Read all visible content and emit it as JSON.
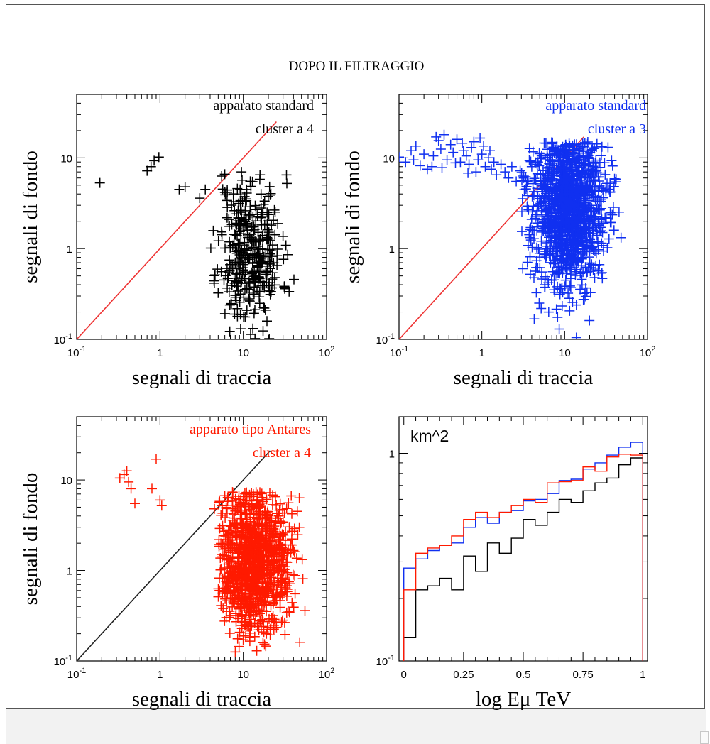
{
  "figure_title": "DOPO IL FILTRAGGIO",
  "colors": {
    "black": "#000000",
    "blue": "#1030f0",
    "red": "#ff1a00",
    "diag_red": "#ee3333",
    "diag_black": "#222222"
  },
  "chart_data": [
    {
      "type": "scatter",
      "panel": "top-left",
      "xlabel": "segnali di traccia",
      "ylabel": "segnali di fondo",
      "xscale": "log",
      "yscale": "log",
      "xlim": [
        0.1,
        100
      ],
      "ylim": [
        0.1,
        50
      ],
      "xticks": [
        {
          "v": 0.1,
          "b": "10",
          "e": "-1"
        },
        {
          "v": 1,
          "b": "1",
          "e": ""
        },
        {
          "v": 10,
          "b": "10",
          "e": ""
        },
        {
          "v": 100,
          "b": "10",
          "e": "2"
        }
      ],
      "yticks": [
        {
          "v": 0.1,
          "b": "10",
          "e": "-1"
        },
        {
          "v": 1,
          "b": "1",
          "e": ""
        },
        {
          "v": 10,
          "b": "10",
          "e": ""
        }
      ],
      "annotations": [
        "apparato standard",
        "cluster a 4"
      ],
      "annotation_color": "#000000",
      "marker_color": "#000000",
      "diagonal": {
        "x": [
          0.1,
          25
        ],
        "y": [
          0.1,
          25
        ],
        "color": "#ee3333"
      },
      "cloud": {
        "count": 360,
        "seed": 11,
        "x_center": 12,
        "x_spread": 0.19,
        "y_center": 0.95,
        "y_spread": 0.42,
        "x_min": 4,
        "x_max": 42,
        "y_min": 0.1,
        "y_max": 7
      },
      "outliers": [
        [
          0.19,
          5.3
        ],
        [
          0.7,
          7.2
        ],
        [
          0.78,
          8.0
        ],
        [
          0.85,
          9.3
        ],
        [
          0.97,
          10.2
        ],
        [
          1.7,
          4.5
        ],
        [
          2.0,
          4.8
        ],
        [
          3.0,
          3.6
        ],
        [
          3.5,
          4.5
        ],
        [
          5.5,
          6.3
        ],
        [
          6.0,
          6.6
        ],
        [
          9.5,
          7.0
        ]
      ]
    },
    {
      "type": "scatter",
      "panel": "top-right",
      "xlabel": "segnali di traccia",
      "ylabel": "segnali di fondo",
      "xscale": "log",
      "yscale": "log",
      "xlim": [
        0.1,
        100
      ],
      "ylim": [
        0.1,
        50
      ],
      "xticks": [
        {
          "v": 0.1,
          "b": "10",
          "e": "-1"
        },
        {
          "v": 1,
          "b": "1",
          "e": ""
        },
        {
          "v": 10,
          "b": "10",
          "e": ""
        },
        {
          "v": 100,
          "b": "10",
          "e": "2"
        }
      ],
      "yticks": [
        {
          "v": 0.1,
          "b": "10",
          "e": "-1"
        },
        {
          "v": 1,
          "b": "1",
          "e": ""
        },
        {
          "v": 10,
          "b": "10",
          "e": ""
        }
      ],
      "annotations": [
        "apparato standard",
        "cluster a 3"
      ],
      "annotation_color": "#1030f0",
      "marker_color": "#1030f0",
      "diagonal": {
        "x": [
          0.1,
          17
        ],
        "y": [
          0.1,
          17
        ],
        "color": "#ee3333"
      },
      "cloud": {
        "count": 1300,
        "seed": 23,
        "x_center": 11,
        "x_spread": 0.22,
        "y_center": 2.8,
        "y_spread": 0.45,
        "x_min": 3,
        "x_max": 50,
        "y_min": 0.1,
        "y_max": 15
      },
      "outliers": [
        [
          0.1,
          10.2
        ],
        [
          0.12,
          9.0
        ],
        [
          0.14,
          12.0
        ],
        [
          0.16,
          13.5
        ],
        [
          0.2,
          11.0
        ],
        [
          0.22,
          7.5
        ],
        [
          0.25,
          8.0
        ],
        [
          0.28,
          17.0
        ],
        [
          0.3,
          15.5
        ],
        [
          0.32,
          12.5
        ],
        [
          0.35,
          18.0
        ],
        [
          0.38,
          9.5
        ],
        [
          0.42,
          14.0
        ],
        [
          0.45,
          11.5
        ],
        [
          0.5,
          16.0
        ],
        [
          0.55,
          9.0
        ],
        [
          0.6,
          12.0
        ],
        [
          0.65,
          10.5
        ],
        [
          0.7,
          8.5
        ],
        [
          0.75,
          13.0
        ],
        [
          0.8,
          15.0
        ],
        [
          0.85,
          7.0
        ],
        [
          0.9,
          9.5
        ],
        [
          1.0,
          11.0
        ],
        [
          1.1,
          8.0
        ],
        [
          1.2,
          10.0
        ],
        [
          1.3,
          7.5
        ],
        [
          1.4,
          9.0
        ],
        [
          1.5,
          6.5
        ],
        [
          1.7,
          8.5
        ],
        [
          1.9,
          7.0
        ],
        [
          2.1,
          6.0
        ],
        [
          2.3,
          8.0
        ],
        [
          2.6,
          5.5
        ],
        [
          2.9,
          7.2
        ],
        [
          0.15,
          9.5
        ],
        [
          0.18,
          8.2
        ],
        [
          0.26,
          10.5
        ],
        [
          0.33,
          7.8
        ],
        [
          0.48,
          8.8
        ],
        [
          0.58,
          14.5
        ],
        [
          0.68,
          6.8
        ],
        [
          1.05,
          13.5
        ],
        [
          1.25,
          12.0
        ],
        [
          0.95,
          16.5
        ]
      ]
    },
    {
      "type": "scatter",
      "panel": "bottom-left",
      "xlabel": "segnali di traccia",
      "ylabel": "segnali di fondo",
      "xscale": "log",
      "yscale": "log",
      "xlim": [
        0.1,
        100
      ],
      "ylim": [
        0.1,
        50
      ],
      "xticks": [
        {
          "v": 0.1,
          "b": "10",
          "e": "-1"
        },
        {
          "v": 1,
          "b": "1",
          "e": ""
        },
        {
          "v": 10,
          "b": "10",
          "e": ""
        },
        {
          "v": 100,
          "b": "10",
          "e": "2"
        }
      ],
      "yticks": [
        {
          "v": 0.1,
          "b": "10",
          "e": "-1"
        },
        {
          "v": 1,
          "b": "1",
          "e": ""
        },
        {
          "v": 10,
          "b": "10",
          "e": ""
        }
      ],
      "annotations": [
        "apparato tipo Antares",
        "cluster a  4"
      ],
      "annotation_color": "#ff1a00",
      "marker_color": "#ff1a00",
      "diagonal": {
        "x": [
          0.1,
          21
        ],
        "y": [
          0.1,
          21
        ],
        "color": "#222222"
      },
      "cloud": {
        "count": 1100,
        "seed": 37,
        "x_center": 13,
        "x_spread": 0.22,
        "y_center": 1.3,
        "y_spread": 0.4,
        "x_min": 5,
        "x_max": 60,
        "y_min": 0.1,
        "y_max": 7.5
      },
      "outliers": [
        [
          0.33,
          10.5
        ],
        [
          0.37,
          11.5
        ],
        [
          0.4,
          12.6
        ],
        [
          0.42,
          9.5
        ],
        [
          0.45,
          8.0
        ],
        [
          0.5,
          5.5
        ],
        [
          0.8,
          8.0
        ],
        [
          0.9,
          17.0
        ],
        [
          1.0,
          6.0
        ],
        [
          1.05,
          5.2
        ],
        [
          4.5,
          4.8
        ],
        [
          5.2,
          5.8
        ],
        [
          6.0,
          6.7
        ],
        [
          6.5,
          6.4
        ],
        [
          7.5,
          7.2
        ]
      ]
    },
    {
      "type": "line",
      "panel": "bottom-right",
      "xlabel": "log Eμ TeV",
      "ylabel": "",
      "annotation": "km^2",
      "xscale": "linear",
      "yscale": "log",
      "xlim": [
        -0.02,
        1.02
      ],
      "ylim": [
        0.1,
        1.5
      ],
      "xticks": [
        {
          "v": 0,
          "b": "0",
          "e": ""
        },
        {
          "v": 0.25,
          "b": "0.25",
          "e": ""
        },
        {
          "v": 0.5,
          "b": "0.5",
          "e": ""
        },
        {
          "v": 0.75,
          "b": "0.75",
          "e": ""
        },
        {
          "v": 1,
          "b": "1",
          "e": ""
        }
      ],
      "yticks": [
        {
          "v": 0.1,
          "b": "10",
          "e": "-1"
        },
        {
          "v": 1,
          "b": "1",
          "e": ""
        }
      ],
      "bin_edges": [
        0,
        0.05,
        0.1,
        0.15,
        0.2,
        0.25,
        0.3,
        0.35,
        0.4,
        0.45,
        0.5,
        0.55,
        0.6,
        0.65,
        0.7,
        0.75,
        0.8,
        0.85,
        0.9,
        0.95,
        1.0
      ],
      "series": [
        {
          "color": "#000000",
          "values": [
            0.13,
            0.22,
            0.23,
            0.25,
            0.22,
            0.32,
            0.27,
            0.37,
            0.33,
            0.39,
            0.48,
            0.45,
            0.52,
            0.6,
            0.58,
            0.66,
            0.72,
            0.76,
            0.88,
            0.95
          ]
        },
        {
          "color": "#1030f0",
          "values": [
            0.28,
            0.31,
            0.34,
            0.36,
            0.37,
            0.44,
            0.49,
            0.46,
            0.52,
            0.53,
            0.59,
            0.6,
            0.64,
            0.74,
            0.75,
            0.84,
            0.9,
            0.98,
            1.07,
            1.13
          ]
        },
        {
          "color": "#ff1a00",
          "values": [
            0.22,
            0.33,
            0.35,
            0.36,
            0.4,
            0.48,
            0.52,
            0.49,
            0.52,
            0.56,
            0.6,
            0.58,
            0.72,
            0.73,
            0.74,
            0.86,
            0.82,
            0.96,
            0.99,
            0.98
          ]
        }
      ]
    }
  ]
}
